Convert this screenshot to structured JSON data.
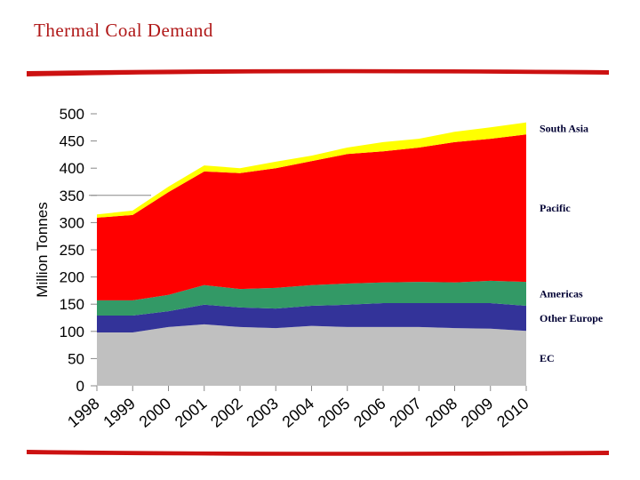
{
  "title": "Thermal Coal Demand",
  "chart_data": {
    "type": "area",
    "stacked": true,
    "title": "",
    "xlabel": "",
    "ylabel": "Million Tonnes",
    "ylim": [
      0,
      500
    ],
    "yticks": [
      0,
      50,
      100,
      150,
      200,
      250,
      300,
      350,
      400,
      450,
      500
    ],
    "categories": [
      "1998",
      "1999",
      "2000",
      "2001",
      "2002",
      "2003",
      "2004",
      "2005",
      "2006",
      "2007",
      "2008",
      "2009",
      "2010"
    ],
    "legend_placement": "right (labels beside series)",
    "grid": false,
    "series": [
      {
        "name": "EC",
        "color": "#c0c0c0",
        "values": [
          98,
          98,
          108,
          113,
          108,
          106,
          110,
          108,
          108,
          108,
          106,
          105,
          101
        ]
      },
      {
        "name": "Other Europe",
        "color": "#333399",
        "values": [
          31,
          31,
          29,
          36,
          36,
          36,
          37,
          41,
          44,
          44,
          46,
          47,
          46
        ]
      },
      {
        "name": "Americas",
        "color": "#339966",
        "values": [
          28,
          28,
          30,
          36,
          34,
          38,
          38,
          39,
          38,
          39,
          38,
          41,
          44
        ]
      },
      {
        "name": "Pacific",
        "color": "#ff0000",
        "values": [
          152,
          157,
          189,
          209,
          213,
          220,
          228,
          238,
          241,
          247,
          258,
          261,
          271
        ]
      },
      {
        "name": "South Asia",
        "color": "#ffff00",
        "values": [
          6,
          8,
          10,
          11,
          9,
          12,
          10,
          12,
          17,
          16,
          19,
          21,
          22
        ]
      }
    ]
  },
  "colors": {
    "title": "#b01818",
    "rule": "#cc1111",
    "label": "#000033"
  }
}
